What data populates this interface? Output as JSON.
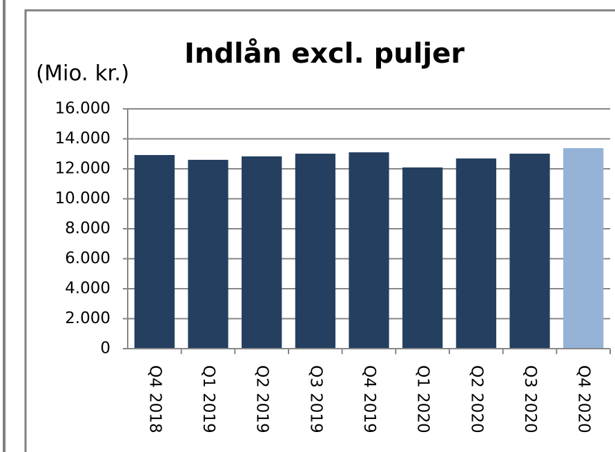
{
  "chart_data": {
    "type": "bar",
    "title": "Indlån excl. puljer",
    "y_label": "(Mio. kr.)",
    "categories": [
      "Q4 2018",
      "Q1 2019",
      "Q2 2019",
      "Q3 2019",
      "Q4 2019",
      "Q1 2020",
      "Q2 2020",
      "Q3 2020",
      "Q4 2020"
    ],
    "values": [
      12920,
      12600,
      12830,
      13010,
      13100,
      12090,
      12690,
      13010,
      13380
    ],
    "colors": [
      "#243f60",
      "#243f60",
      "#243f60",
      "#243f60",
      "#243f60",
      "#243f60",
      "#243f60",
      "#243f60",
      "#95b3d7"
    ],
    "ylim": [
      0,
      16000
    ],
    "yticks": [
      0,
      {
        "value": 2000,
        "label": "2.000"
      },
      {
        "value": 4000,
        "label": "4.000"
      },
      {
        "value": 6000,
        "label": "6.000"
      },
      {
        "value": 8000,
        "label": "8.000"
      },
      {
        "value": 10000,
        "label": "10.000"
      },
      {
        "value": 12000,
        "label": "12.000"
      },
      {
        "value": 14000,
        "label": "14.000"
      },
      {
        "value": 16000,
        "label": "16.000"
      }
    ],
    "grid": true
  }
}
